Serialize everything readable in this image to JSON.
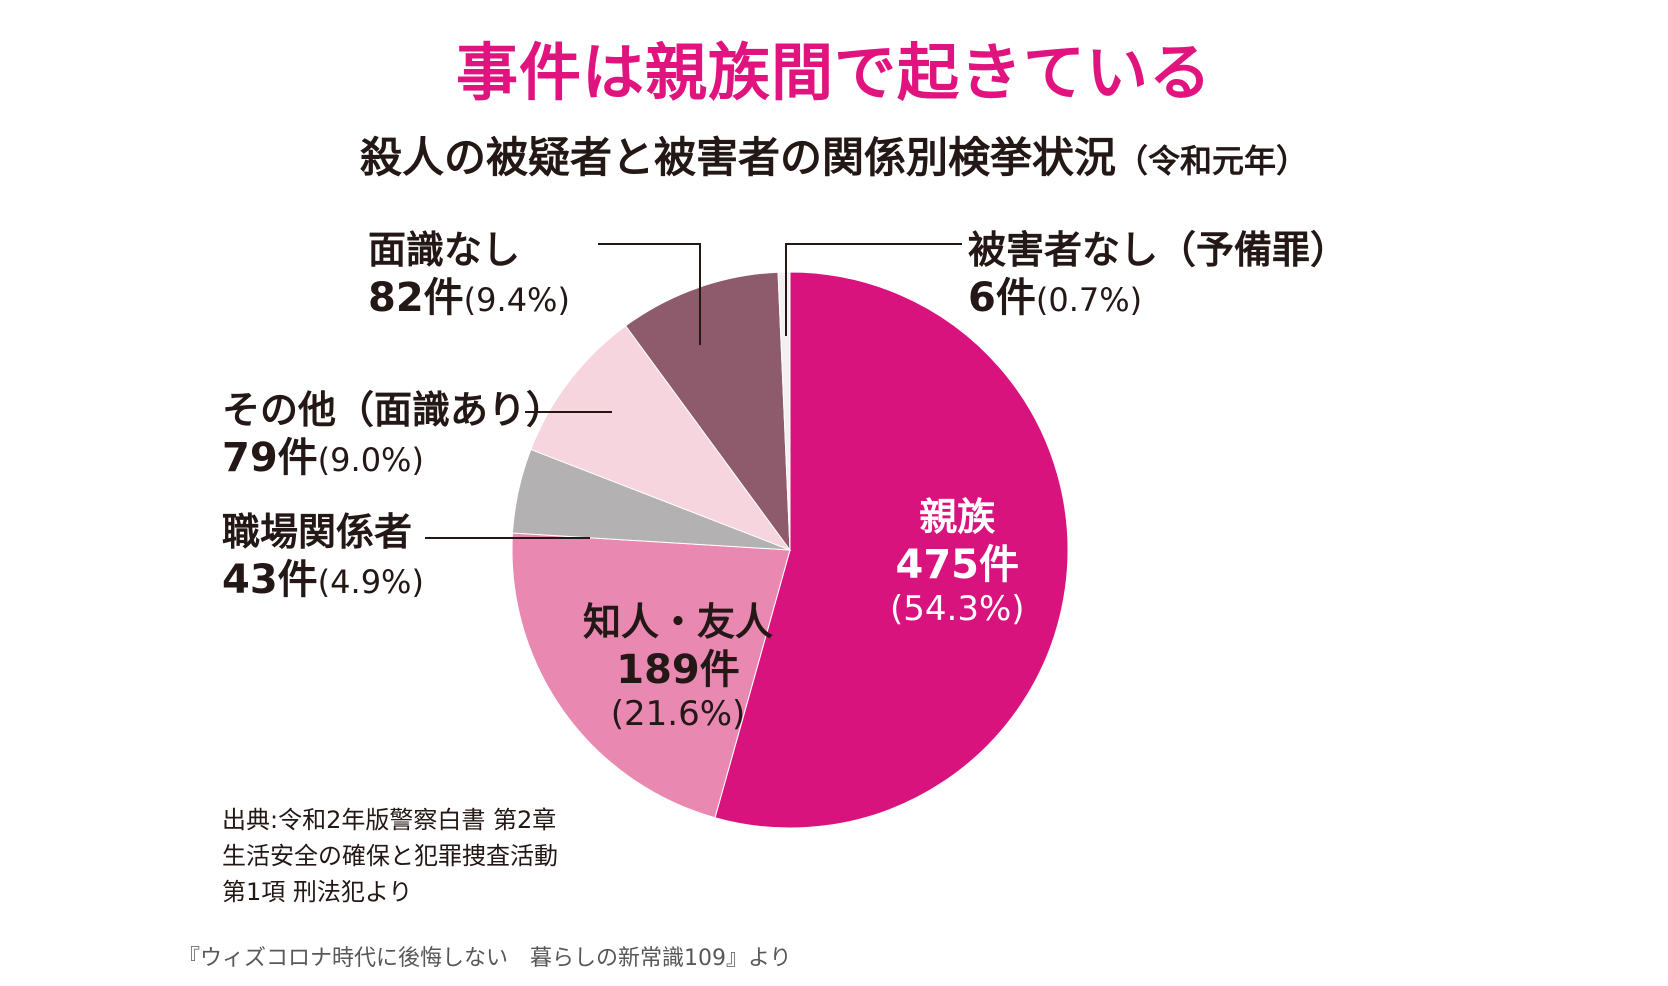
{
  "title": "事件は親族間で起きている",
  "subtitle": {
    "main": "殺人の被疑者と被害者の関係別検挙状況",
    "year": "（令和元年）"
  },
  "source_note": "出典:令和2年版警察白書 第2章 生活安全の確保と犯罪捜査活動 第1項 刑法犯より",
  "credit": "『ウィズコロナ時代に後悔しない　暮らしの新常識109』より",
  "chart_data": {
    "type": "pie",
    "title": "殺人の被疑者と被害者の関係別検挙状況（令和元年）",
    "start": "12 o'clock",
    "direction": "clockwise",
    "slices": [
      {
        "label": "親族",
        "count": "475件",
        "value": 475,
        "percent": "(54.3%)",
        "pct_value": 54.3,
        "color": "#d9137e",
        "label_position": "inside"
      },
      {
        "label": "知人・友人",
        "count": "189件",
        "value": 189,
        "percent": "(21.6%)",
        "pct_value": 21.6,
        "color": "#e989b2",
        "label_position": "inside"
      },
      {
        "label": "職場関係者",
        "count": "43件",
        "value": 43,
        "percent": "(4.9%)",
        "pct_value": 4.9,
        "color": "#b3b1b2",
        "label_position": "outside-left"
      },
      {
        "label": "その他（面識あり）",
        "count": "79件",
        "value": 79,
        "percent": "(9.0%)",
        "pct_value": 9.0,
        "color": "#f6d5df",
        "label_position": "outside-left"
      },
      {
        "label": "面識なし",
        "count": "82件",
        "value": 82,
        "percent": "(9.4%)",
        "pct_value": 9.4,
        "color": "#8e5b6c",
        "label_position": "outside-top-left"
      },
      {
        "label": "被害者なし（予備罪）",
        "count": "6件",
        "value": 6,
        "percent": "(0.7%)",
        "pct_value": 0.7,
        "color": "#f2f0f0",
        "label_position": "outside-top-right"
      }
    ]
  }
}
